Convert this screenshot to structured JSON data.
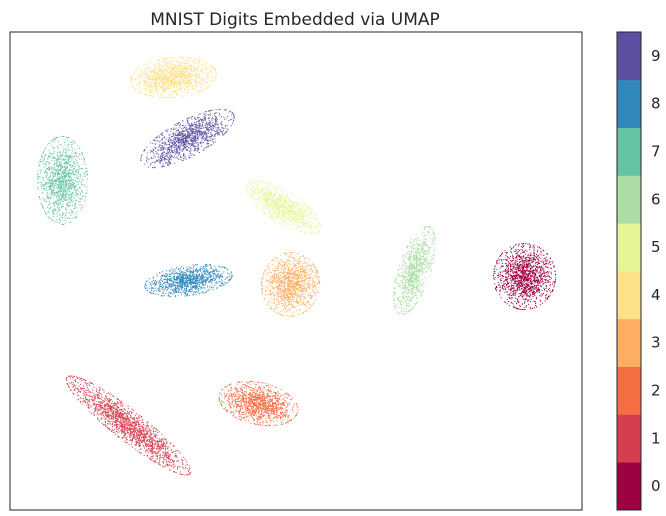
{
  "chart_data": {
    "type": "scatter",
    "title": "MNIST Digits Embedded via UMAP",
    "xlabel": "",
    "ylabel": "",
    "axes_ticks": "none",
    "grid": false,
    "colormap": "Spectral",
    "colorbar": {
      "placement": "right",
      "ticks": [
        "0",
        "1",
        "2",
        "3",
        "4",
        "5",
        "6",
        "7",
        "8",
        "9"
      ],
      "colors": [
        "#9e0142",
        "#d53e4f",
        "#f46d43",
        "#fdae61",
        "#fee08b",
        "#e6f598",
        "#abdda4",
        "#66c2a5",
        "#3288bd",
        "#5e4fa2"
      ]
    }
  }
}
